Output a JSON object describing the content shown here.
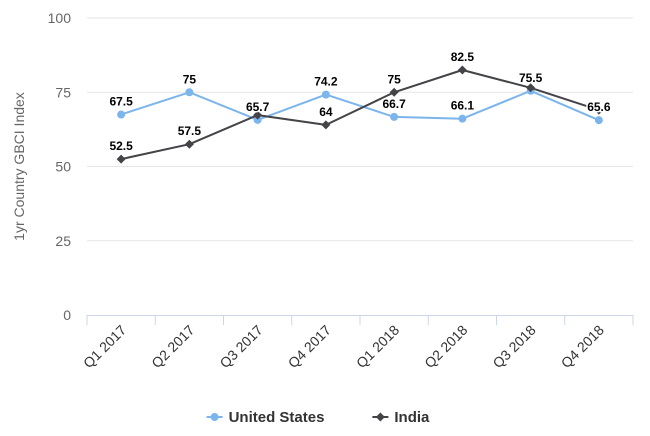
{
  "chart_data": {
    "type": "line",
    "categories": [
      "Q1 2017",
      "Q2 2017",
      "Q3 2017",
      "Q4 2017",
      "Q1 2018",
      "Q2 2018",
      "Q3 2018",
      "Q4 2018"
    ],
    "series": [
      {
        "name": "United States",
        "color": "#7cb5ec",
        "marker": "circle",
        "values": [
          67.5,
          75,
          65.7,
          74.2,
          66.7,
          66.1,
          75.5,
          65.6
        ],
        "labels": [
          "67.5",
          "75",
          "65.7",
          "74.2",
          "66.7",
          "66.1",
          "75.5",
          "65.6"
        ]
      },
      {
        "name": "India",
        "color": "#434348",
        "marker": "diamond",
        "values": [
          52.5,
          57.5,
          67.3,
          64,
          75,
          82.5,
          76.5,
          69
        ],
        "labels": [
          "52.5",
          "57.5",
          "",
          "64",
          "75",
          "82.5",
          "",
          ""
        ]
      }
    ],
    "ylabel": "1yr Country GBCI Index",
    "xlabel": "",
    "ylim": [
      0,
      100
    ],
    "yticks": [
      0,
      25,
      50,
      75,
      100
    ],
    "grid": true,
    "legend": "bottom-center"
  }
}
